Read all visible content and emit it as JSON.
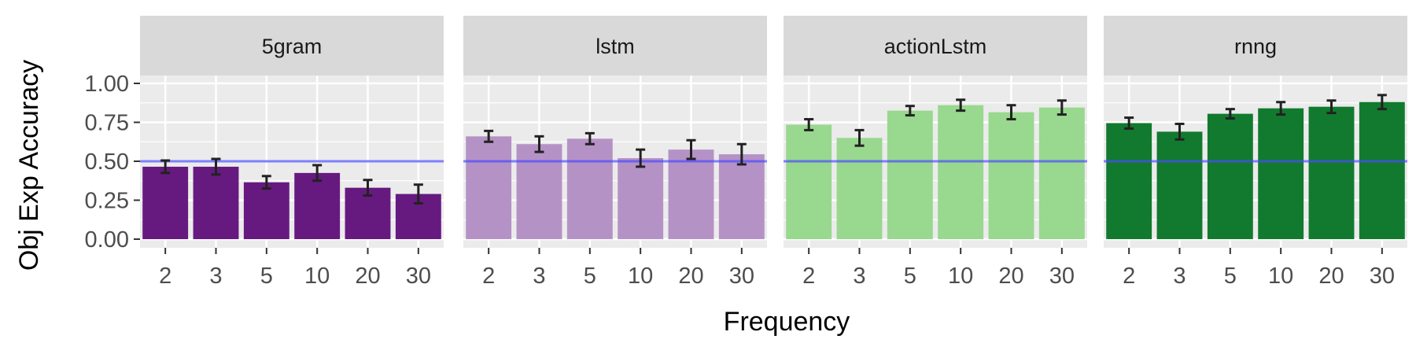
{
  "chart_data": {
    "type": "bar",
    "xlabel": "Frequency",
    "ylabel": "Obj Exp Accuracy",
    "ylim": [
      0,
      1.0
    ],
    "yticks": [
      "0.00",
      "0.25",
      "0.50",
      "0.75",
      "1.00"
    ],
    "ytick_values": [
      0,
      0.25,
      0.5,
      0.75,
      1.0
    ],
    "categories": [
      "2",
      "3",
      "5",
      "10",
      "20",
      "30"
    ],
    "reference_line": 0.5,
    "reference_line_color": "#4a4aff",
    "grid": true,
    "panel_background": "#ebebeb",
    "strip_background": "#d9d9d9",
    "panels": [
      {
        "name": "5gram",
        "color": "#661a80",
        "values": [
          0.465,
          0.465,
          0.365,
          0.425,
          0.33,
          0.29
        ],
        "errors": [
          0.04,
          0.05,
          0.04,
          0.05,
          0.05,
          0.06
        ]
      },
      {
        "name": "lstm",
        "color": "#b592c6",
        "values": [
          0.66,
          0.61,
          0.645,
          0.52,
          0.575,
          0.545
        ],
        "errors": [
          0.035,
          0.05,
          0.035,
          0.055,
          0.06,
          0.065
        ]
      },
      {
        "name": "actionLstm",
        "color": "#99d88f",
        "values": [
          0.735,
          0.65,
          0.825,
          0.86,
          0.815,
          0.845
        ],
        "errors": [
          0.035,
          0.05,
          0.03,
          0.035,
          0.045,
          0.045
        ]
      },
      {
        "name": "rnng",
        "color": "#127a2e",
        "values": [
          0.745,
          0.69,
          0.805,
          0.84,
          0.85,
          0.88
        ],
        "errors": [
          0.035,
          0.05,
          0.03,
          0.04,
          0.04,
          0.045
        ]
      }
    ]
  }
}
